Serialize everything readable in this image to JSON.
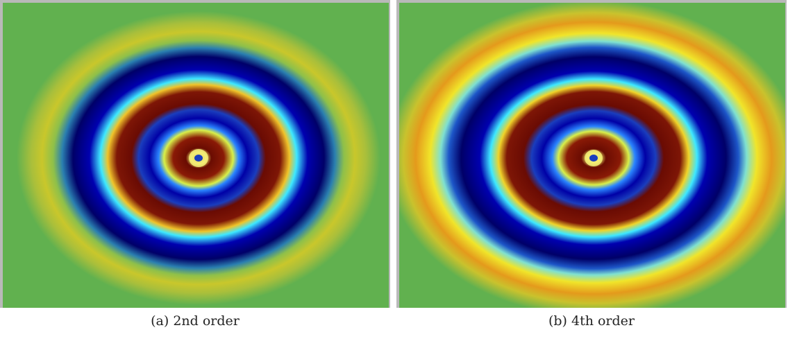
{
  "panels": [
    {
      "id": "a",
      "caption": "(a) 2nd order"
    },
    {
      "id": "b",
      "caption": "(b) 4th order"
    }
  ],
  "colors": {
    "background_field": "#61b14f",
    "frame": "#b9b9b9",
    "red_dark": "#6b0a00",
    "blue_dark": "#00007a",
    "cyan": "#35e0ff",
    "yellow": "#e9e51f",
    "orange": "#e6a21c"
  }
}
